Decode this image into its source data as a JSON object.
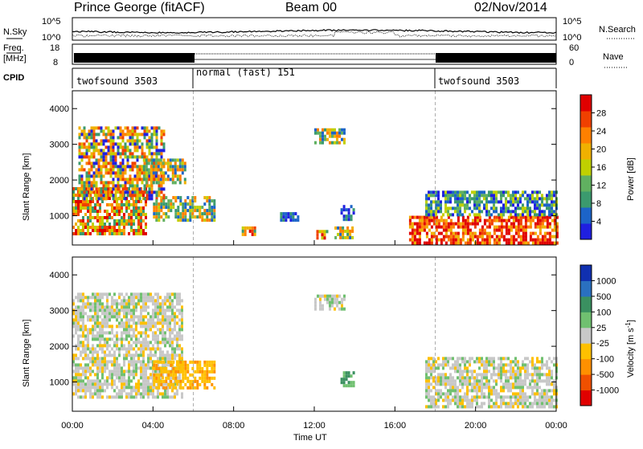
{
  "header": {
    "station": "Prince George (fitACF)",
    "beam": "Beam 00",
    "date": "02/Nov/2014"
  },
  "top_panels": {
    "nsky_label": "N.Sky",
    "nsky_ticks": [
      "10^5",
      "10^0"
    ],
    "nsearch_label": "N.Search",
    "nsearch_ticks": [
      "10^5",
      "10^0"
    ],
    "freq_label_1": "Freq.",
    "freq_label_2": "[MHz]",
    "freq_ticks": [
      "18",
      "8"
    ],
    "nave_label": "Nave",
    "nave_ticks": [
      "60",
      "0"
    ],
    "cpid_label": "CPID",
    "cpid_segments": [
      {
        "name": "twofsound 3503",
        "start_h": 0,
        "end_h": 6
      },
      {
        "name": "normal (fast) 151",
        "start_h": 6,
        "end_h": 18
      },
      {
        "name": "twofsound 3503",
        "start_h": 18,
        "end_h": 24
      }
    ]
  },
  "x_axis": {
    "label": "Time UT",
    "ticks": [
      "00:00",
      "04:00",
      "08:00",
      "12:00",
      "16:00",
      "20:00",
      "00:00"
    ],
    "tick_hours": [
      0,
      4,
      8,
      12,
      16,
      20,
      24
    ]
  },
  "y_axis": {
    "label": "Slant Range [km]",
    "ticks": [
      "1000",
      "2000",
      "3000",
      "4000"
    ]
  },
  "power_colorbar": {
    "label": "Power [dB]",
    "ticks": [
      "4",
      "8",
      "12",
      "16",
      "20",
      "24",
      "28"
    ],
    "colors": [
      "#1f1fe0",
      "#1c64c8",
      "#3b9a6e",
      "#60b060",
      "#c0d000",
      "#f0b000",
      "#ff8000",
      "#f04000",
      "#e00000"
    ]
  },
  "velocity_colorbar": {
    "label": "Velocity [m s",
    "label_sup": "-1",
    "label_end": "]",
    "ticks": [
      "1000",
      "500",
      "100",
      "25",
      "-25",
      "-100",
      "-500",
      "-1000"
    ],
    "colors": [
      "#1030b0",
      "#2a70c0",
      "#3a9060",
      "#70c070",
      "#c8c8c8",
      "#ffc000",
      "#ff9000",
      "#f05000",
      "#e00000"
    ]
  },
  "chart_data": {
    "type": "heatmap",
    "title": "Prince George (fitACF)",
    "xlabel": "Time UT",
    "ylabel": "Slant Range [km]",
    "xlim": [
      0,
      24
    ],
    "ylim": [
      180,
      4500
    ],
    "dashed_lines_h": [
      6,
      18
    ],
    "power_patches": [
      {
        "t": [
          0,
          3.7
        ],
        "r": [
          500,
          1800
        ],
        "level": "high"
      },
      {
        "t": [
          0.3,
          4.5
        ],
        "r": [
          1500,
          3500
        ],
        "level": "mixed-streaks"
      },
      {
        "t": [
          3.5,
          5.6
        ],
        "r": [
          1900,
          2600
        ],
        "level": "mid"
      },
      {
        "t": [
          4.0,
          7.0
        ],
        "r": [
          850,
          1550
        ],
        "level": "mid"
      },
      {
        "t": [
          8.4,
          9.0
        ],
        "r": [
          500,
          700
        ],
        "level": "high"
      },
      {
        "t": [
          10.3,
          11.2
        ],
        "r": [
          900,
          1100
        ],
        "level": "low"
      },
      {
        "t": [
          12.0,
          13.5
        ],
        "r": [
          3000,
          3450
        ],
        "level": "mid"
      },
      {
        "t": [
          12.1,
          12.6
        ],
        "r": [
          350,
          600
        ],
        "level": "high"
      },
      {
        "t": [
          13.0,
          13.9
        ],
        "r": [
          400,
          700
        ],
        "level": "mid"
      },
      {
        "t": [
          13.3,
          14.0
        ],
        "r": [
          900,
          1300
        ],
        "level": "low"
      },
      {
        "t": [
          16.7,
          24.0
        ],
        "r": [
          250,
          1000
        ],
        "level": "very-high"
      },
      {
        "t": [
          17.5,
          24.0
        ],
        "r": [
          1000,
          1700
        ],
        "level": "mid-low"
      }
    ],
    "velocity_patches": [
      {
        "t": [
          0,
          5.5
        ],
        "r": [
          600,
          3500
        ],
        "level": "near-zero"
      },
      {
        "t": [
          4.0,
          7.0
        ],
        "r": [
          850,
          1600
        ],
        "level": "slightly-negative"
      },
      {
        "t": [
          12.0,
          13.5
        ],
        "r": [
          3000,
          3450
        ],
        "level": "near-zero"
      },
      {
        "t": [
          13.3,
          14.0
        ],
        "r": [
          900,
          1300
        ],
        "level": "positive"
      },
      {
        "t": [
          17.5,
          24.0
        ],
        "r": [
          300,
          1700
        ],
        "level": "near-zero"
      }
    ]
  }
}
